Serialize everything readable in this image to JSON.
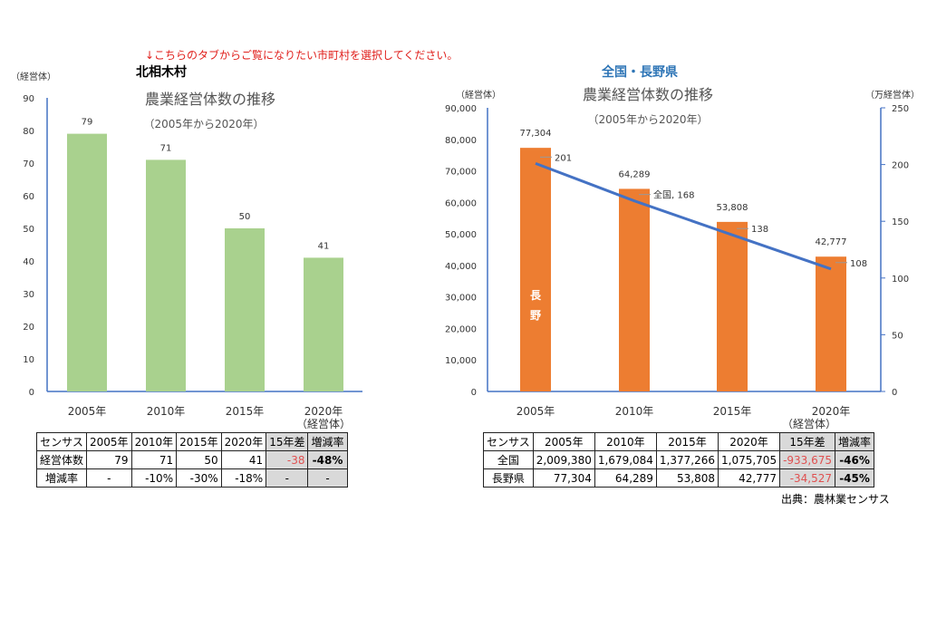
{
  "notice": "↓こちらのタブからご覧になりたい市町村を選択してください。",
  "chart_data": [
    {
      "type": "bar",
      "region": "北相木村",
      "title": "農業経営体数の推移",
      "subtitle": "（2005年から2020年）",
      "ylabel": "（経営体）",
      "categories": [
        "2005年",
        "2010年",
        "2015年",
        "2020年"
      ],
      "values": [
        79,
        71,
        50,
        41
      ],
      "ylim": [
        0,
        90
      ],
      "yticks": [
        0,
        10,
        20,
        30,
        40,
        50,
        60,
        70,
        80,
        90
      ],
      "color": "#a9d18e",
      "grid": false
    },
    {
      "type": "bar+line",
      "region": "全国・長野県",
      "title": "農業経営体数の推移",
      "subtitle": "（2005年から2020年）",
      "ylabel": "（経営体）",
      "y2label": "（万経営体）",
      "categories": [
        "2005年",
        "2010年",
        "2015年",
        "2020年"
      ],
      "series": [
        {
          "name": "長野",
          "type": "bar",
          "axis": "left",
          "values": [
            77304,
            64289,
            53808,
            42777
          ],
          "labels": [
            "77,304",
            "64,289",
            "53,808",
            "42,777"
          ],
          "color": "#ed7d31",
          "label_text": [
            "長",
            "野"
          ]
        },
        {
          "name": "全国",
          "type": "line",
          "axis": "right",
          "values": [
            201,
            168,
            138,
            108
          ],
          "labels": [
            "201",
            "全国, 168",
            "138",
            "108"
          ],
          "color": "#4472c4"
        }
      ],
      "ylim": [
        0,
        90000
      ],
      "yticks": [
        "0",
        "10,000",
        "20,000",
        "30,000",
        "40,000",
        "50,000",
        "60,000",
        "70,000",
        "80,000",
        "90,000"
      ],
      "y2lim": [
        0,
        250
      ],
      "y2ticks": [
        "0",
        "50",
        "100",
        "150",
        "200",
        "250"
      ],
      "grid": false
    }
  ],
  "table_left": {
    "unit": "（経営体）",
    "header": [
      "センサス",
      "2005年",
      "2010年",
      "2015年",
      "2020年",
      "15年差",
      "増減率"
    ],
    "rows": [
      [
        "経営体数",
        "79",
        "71",
        "50",
        "41",
        "-38",
        "-48%"
      ],
      [
        "増減率",
        "-",
        "-10%",
        "-30%",
        "-18%",
        "-",
        "-"
      ]
    ]
  },
  "table_right": {
    "unit": "（経営体）",
    "header": [
      "センサス",
      "2005年",
      "2010年",
      "2015年",
      "2020年",
      "15年差",
      "増減率"
    ],
    "rows": [
      [
        "全国",
        "2,009,380",
        "1,679,084",
        "1,377,266",
        "1,075,705",
        "-933,675",
        "-46%"
      ],
      [
        "長野県",
        "77,304",
        "64,289",
        "53,808",
        "42,777",
        "-34,527",
        "-45%"
      ]
    ]
  },
  "source": "出典：農林業センサス"
}
